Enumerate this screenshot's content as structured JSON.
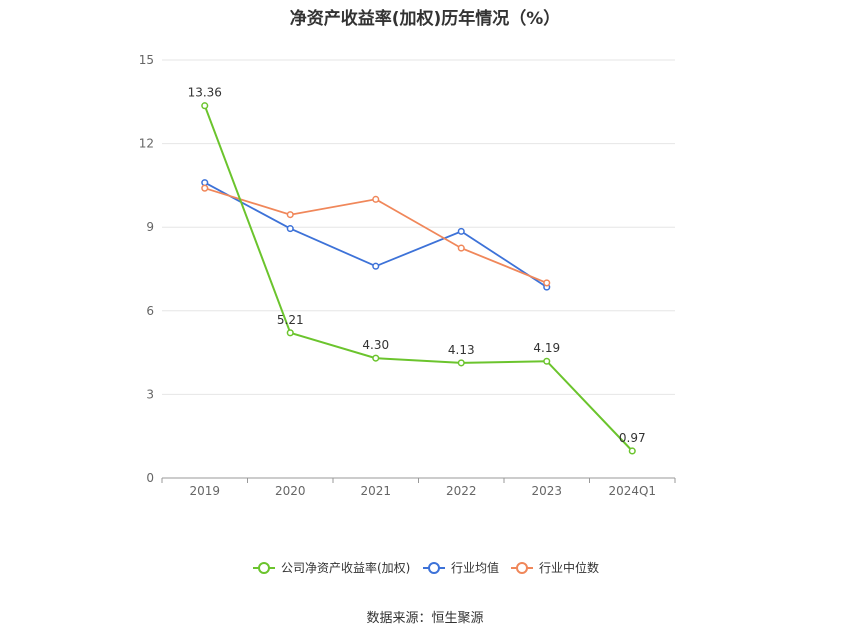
{
  "chart_data": {
    "type": "line",
    "title": "净资产收益率(加权)历年情况（%）",
    "categories": [
      "2019",
      "2020",
      "2021",
      "2022",
      "2023",
      "2024Q1"
    ],
    "ylim": [
      0,
      15
    ],
    "yticks": [
      0,
      3,
      6,
      9,
      12,
      15
    ],
    "grid": true,
    "legend_position": "bottom",
    "series": [
      {
        "name": "公司净资产收益率(加权)",
        "color": "#6bc42d",
        "values": [
          13.36,
          5.21,
          4.3,
          4.13,
          4.19,
          0.97
        ],
        "labels": [
          "13.36",
          "5.21",
          "4.30",
          "4.13",
          "4.19",
          "0.97"
        ]
      },
      {
        "name": "行业均值",
        "color": "#3d72d8",
        "values": [
          10.6,
          8.95,
          7.6,
          8.85,
          6.85,
          null
        ]
      },
      {
        "name": "行业中位数",
        "color": "#f0875a",
        "values": [
          10.4,
          9.45,
          10.0,
          8.25,
          7.0,
          null
        ]
      }
    ]
  },
  "source": "数据来源：恒生聚源"
}
